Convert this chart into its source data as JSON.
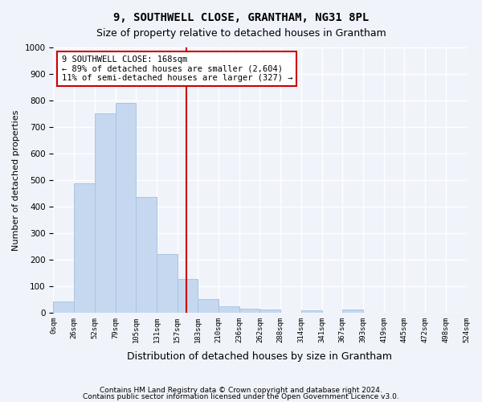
{
  "title": "9, SOUTHWELL CLOSE, GRANTHAM, NG31 8PL",
  "subtitle": "Size of property relative to detached houses in Grantham",
  "xlabel": "Distribution of detached houses by size in Grantham",
  "ylabel": "Number of detached properties",
  "bin_labels": [
    "0sqm",
    "26sqm",
    "52sqm",
    "79sqm",
    "105sqm",
    "131sqm",
    "157sqm",
    "183sqm",
    "210sqm",
    "236sqm",
    "262sqm",
    "288sqm",
    "314sqm",
    "341sqm",
    "367sqm",
    "393sqm",
    "419sqm",
    "445sqm",
    "472sqm",
    "498sqm",
    "524sqm"
  ],
  "bar_values": [
    42,
    487,
    750,
    790,
    435,
    220,
    128,
    52,
    25,
    14,
    12,
    0,
    8,
    0,
    10,
    0,
    0,
    0,
    0,
    0
  ],
  "bar_color": "#c5d8f0",
  "bar_edge_color": "#aac4e0",
  "background_color": "#f0f4fa",
  "grid_color": "#ffffff",
  "vline_x": 6.46,
  "annotation_text": "9 SOUTHWELL CLOSE: 168sqm\n← 89% of detached houses are smaller (2,604)\n11% of semi-detached houses are larger (327) →",
  "annotation_box_color": "#ffffff",
  "annotation_box_edge": "#cc0000",
  "vline_color": "#cc0000",
  "ylim": [
    0,
    1000
  ],
  "yticks": [
    0,
    100,
    200,
    300,
    400,
    500,
    600,
    700,
    800,
    900,
    1000
  ],
  "footer1": "Contains HM Land Registry data © Crown copyright and database right 2024.",
  "footer2": "Contains public sector information licensed under the Open Government Licence v3.0."
}
